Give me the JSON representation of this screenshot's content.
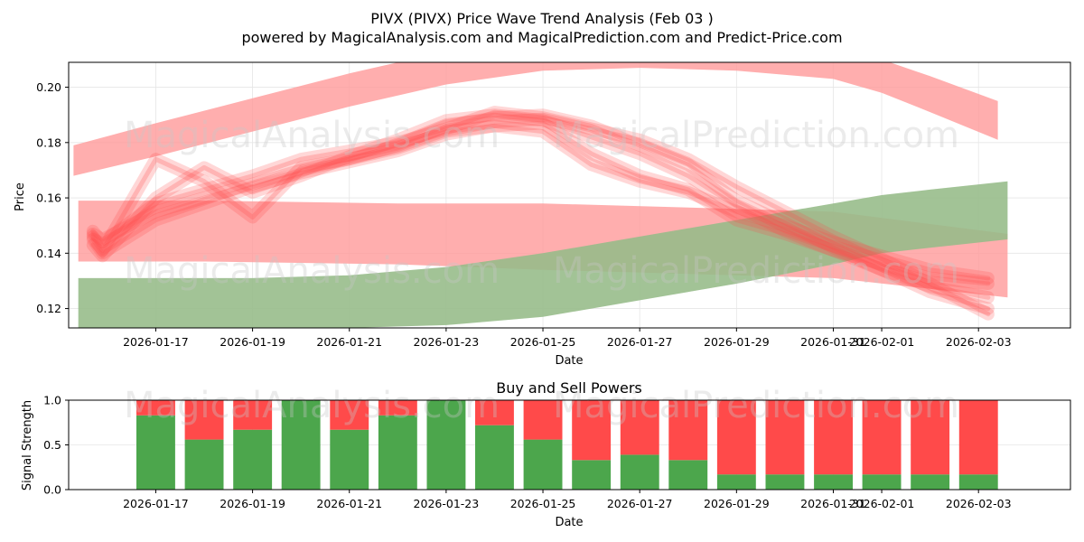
{
  "header": {
    "title": "PIVX (PIVX) Price Wave Trend Analysis (Feb 03 )",
    "subtitle": "powered by MagicalAnalysis.com and MagicalPrediction.com and Predict-Price.com"
  },
  "watermarks": [
    "MagicalAnalysis.com",
    "MagicalPrediction.com"
  ],
  "colors": {
    "sell": "#ff4a4a",
    "buy": "#4ca64c",
    "sell_band": "#ff9a9a",
    "buy_band": "#a8d5a8",
    "grid": "#e6e6e6"
  },
  "chart_data": [
    {
      "type": "line",
      "title": "",
      "xlabel": "Date",
      "ylabel": "Price",
      "xlim": [
        -1.8,
        18.9
      ],
      "ylim": [
        0.113,
        0.209
      ],
      "date_ticks": [
        {
          "x": 0,
          "label": "2026-01-17"
        },
        {
          "x": 2,
          "label": "2026-01-19"
        },
        {
          "x": 4,
          "label": "2026-01-21"
        },
        {
          "x": 6,
          "label": "2026-01-23"
        },
        {
          "x": 8,
          "label": "2026-01-25"
        },
        {
          "x": 10,
          "label": "2026-01-27"
        },
        {
          "x": 12,
          "label": "2026-01-29"
        },
        {
          "x": 14,
          "label": "2026-01-31"
        },
        {
          "x": 15,
          "label": "2026-02-01"
        },
        {
          "x": 17,
          "label": "2026-02-03"
        }
      ],
      "y_ticks": [
        0.12,
        0.14,
        0.16,
        0.18,
        0.2
      ],
      "y_tick_labels": [
        "0.12",
        "0.14",
        "0.16",
        "0.18",
        "0.20"
      ],
      "bands": [
        {
          "name": "upper-red-wave",
          "color": "sell",
          "x": [
            -1.7,
            0,
            2,
            4,
            6,
            8,
            10,
            12,
            14,
            15,
            16,
            17.4
          ],
          "upper": [
            0.179,
            0.187,
            0.196,
            0.205,
            0.213,
            0.218,
            0.219,
            0.218,
            0.214,
            0.21,
            0.204,
            0.195
          ],
          "lower": [
            0.168,
            0.175,
            0.184,
            0.193,
            0.201,
            0.206,
            0.207,
            0.206,
            0.203,
            0.198,
            0.191,
            0.181
          ]
        },
        {
          "name": "flat-red-band",
          "color": "sell",
          "x": [
            -1.6,
            1,
            5,
            8,
            12,
            14,
            17.6
          ],
          "upper": [
            0.159,
            0.159,
            0.158,
            0.158,
            0.156,
            0.155,
            0.147
          ],
          "lower": [
            0.137,
            0.137,
            0.136,
            0.134,
            0.132,
            0.131,
            0.124
          ]
        },
        {
          "name": "green-rising-band",
          "color": "buy",
          "x": [
            -1.6,
            0,
            2,
            4,
            6,
            8,
            10,
            12,
            14,
            15,
            16,
            17.6
          ],
          "upper": [
            0.131,
            0.131,
            0.131,
            0.132,
            0.135,
            0.14,
            0.146,
            0.152,
            0.158,
            0.161,
            0.163,
            0.166
          ],
          "lower": [
            0.113,
            0.113,
            0.113,
            0.113,
            0.114,
            0.117,
            0.123,
            0.129,
            0.136,
            0.14,
            0.142,
            0.145
          ]
        }
      ],
      "series": [
        {
          "name": "wave-1",
          "x": [
            -1.3,
            -1.1,
            0,
            1,
            2,
            3,
            4,
            5,
            6,
            7,
            8,
            9,
            10,
            11,
            12,
            13,
            14,
            15,
            16,
            17.2
          ],
          "values": [
            0.147,
            0.145,
            0.155,
            0.16,
            0.165,
            0.17,
            0.174,
            0.179,
            0.186,
            0.189,
            0.19,
            0.186,
            0.179,
            0.172,
            0.159,
            0.151,
            0.142,
            0.134,
            0.128,
            0.124
          ]
        },
        {
          "name": "wave-2",
          "x": [
            -1.3,
            -1.1,
            0,
            1,
            2,
            3,
            4,
            5,
            6,
            7,
            8,
            9,
            10,
            11,
            12,
            13,
            14,
            15,
            16,
            17.2
          ],
          "values": [
            0.143,
            0.139,
            0.16,
            0.171,
            0.162,
            0.168,
            0.175,
            0.181,
            0.188,
            0.19,
            0.188,
            0.182,
            0.176,
            0.168,
            0.157,
            0.148,
            0.141,
            0.134,
            0.126,
            0.12
          ]
        },
        {
          "name": "wave-3",
          "x": [
            -1.3,
            -1.1,
            0,
            1,
            2,
            3,
            4,
            5,
            6,
            7,
            8,
            9,
            10,
            11,
            12,
            13,
            14,
            15,
            16,
            17.2
          ],
          "values": [
            0.146,
            0.141,
            0.174,
            0.166,
            0.153,
            0.171,
            0.174,
            0.178,
            0.184,
            0.186,
            0.187,
            0.176,
            0.168,
            0.163,
            0.152,
            0.147,
            0.141,
            0.136,
            0.131,
            0.129
          ]
        },
        {
          "name": "wave-4",
          "x": [
            -1.3,
            -1.1,
            0,
            1,
            2,
            3,
            4,
            5,
            6,
            7,
            8,
            9,
            10,
            11,
            12,
            13,
            14,
            15,
            16,
            17.2
          ],
          "values": [
            0.148,
            0.144,
            0.158,
            0.163,
            0.168,
            0.174,
            0.177,
            0.18,
            0.185,
            0.191,
            0.189,
            0.185,
            0.181,
            0.174,
            0.164,
            0.155,
            0.146,
            0.138,
            0.129,
            0.118
          ]
        },
        {
          "name": "wave-5",
          "x": [
            -1.3,
            -1.1,
            0,
            1,
            2,
            3,
            4,
            5,
            6,
            7,
            8,
            9,
            10,
            11,
            12,
            13,
            14,
            15,
            16,
            17.2
          ],
          "values": [
            0.145,
            0.14,
            0.152,
            0.158,
            0.164,
            0.169,
            0.173,
            0.177,
            0.183,
            0.186,
            0.184,
            0.172,
            0.166,
            0.162,
            0.155,
            0.15,
            0.144,
            0.139,
            0.134,
            0.131
          ]
        }
      ]
    },
    {
      "type": "bar",
      "title": "Buy and Sell Powers",
      "xlabel": "Date",
      "ylabel": "Signal Strength",
      "xlim": [
        -1.8,
        18.9
      ],
      "ylim": [
        0,
        1.0
      ],
      "y_ticks": [
        0.0,
        0.5,
        1.0
      ],
      "y_tick_labels": [
        "0.0",
        "0.5",
        "1.0"
      ],
      "categories": [
        "2026-01-17",
        "2026-01-18",
        "2026-01-19",
        "2026-01-20",
        "2026-01-21",
        "2026-01-22",
        "2026-01-23",
        "2026-01-24",
        "2026-01-25",
        "2026-01-26",
        "2026-01-27",
        "2026-01-28",
        "2026-01-29",
        "2026-01-30",
        "2026-01-31",
        "2026-02-01",
        "2026-02-02",
        "2026-02-03"
      ],
      "series": [
        {
          "name": "Buy",
          "color": "buy",
          "values": [
            0.83,
            0.56,
            0.67,
            1.0,
            0.67,
            0.83,
            1.0,
            0.72,
            0.56,
            0.33,
            0.39,
            0.33,
            0.17,
            0.17,
            0.17,
            0.17,
            0.17,
            0.17
          ]
        },
        {
          "name": "Sell",
          "color": "sell",
          "values": [
            0.17,
            0.44,
            0.33,
            0.0,
            0.33,
            0.17,
            0.0,
            0.28,
            0.44,
            0.67,
            0.61,
            0.67,
            0.83,
            0.83,
            0.83,
            0.83,
            0.83,
            0.83
          ]
        }
      ]
    }
  ]
}
